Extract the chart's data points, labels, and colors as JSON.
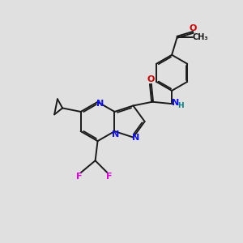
{
  "bg_color": "#e0e0e0",
  "bond_color": "#1a1a1a",
  "N_color": "#1010ee",
  "O_color": "#cc0000",
  "F_color": "#dd00dd",
  "H_color": "#008080",
  "lw": 1.4,
  "dbo": 0.032,
  "xlim": [
    0,
    10
  ],
  "ylim": [
    0,
    10
  ]
}
